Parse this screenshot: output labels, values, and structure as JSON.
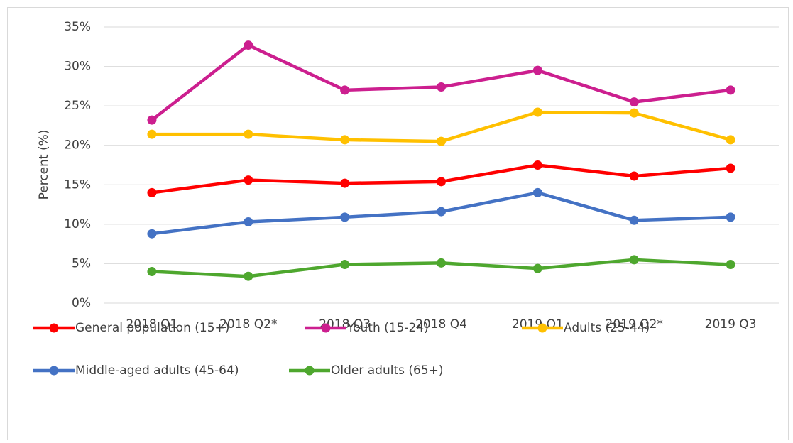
{
  "chart_data": {
    "type": "line",
    "y_label": "Percent (%)",
    "categories": [
      "2018 Q1",
      "2018 Q2*",
      "2018 Q3",
      "2018 Q4",
      "2019 Q1",
      "2019 Q2*",
      "2019 Q3"
    ],
    "series": [
      {
        "name": "General population (15+)",
        "color": "#ff0000",
        "values": [
          14.0,
          15.6,
          15.2,
          15.4,
          17.5,
          16.1,
          17.1
        ]
      },
      {
        "name": "Youth (15-24)",
        "color": "#cc1f8f",
        "values": [
          23.2,
          32.7,
          27.0,
          27.4,
          29.5,
          25.5,
          27.0
        ]
      },
      {
        "name": "Adults (25-44)",
        "color": "#ffc000",
        "values": [
          21.4,
          21.4,
          20.7,
          20.5,
          24.2,
          24.1,
          20.7
        ]
      },
      {
        "name": "Middle-aged adults (45-64)",
        "color": "#4472c4",
        "values": [
          8.8,
          10.3,
          10.9,
          11.6,
          14.0,
          10.5,
          10.9
        ]
      },
      {
        "name": "Older adults (65+)",
        "color": "#4ea72e",
        "values": [
          4.0,
          3.4,
          4.9,
          5.1,
          4.4,
          5.5,
          4.9
        ]
      }
    ],
    "ylim": [
      0,
      35
    ],
    "yticks": [
      {
        "value": 0,
        "label": "0%"
      },
      {
        "value": 5,
        "label": "5%"
      },
      {
        "value": 10,
        "label": "10%"
      },
      {
        "value": 15,
        "label": "15%"
      },
      {
        "value": 20,
        "label": "20%"
      },
      {
        "value": 25,
        "label": "25%"
      },
      {
        "value": 30,
        "label": "30%"
      },
      {
        "value": 35,
        "label": "35%"
      }
    ],
    "grid": true,
    "legend": "bottom"
  }
}
